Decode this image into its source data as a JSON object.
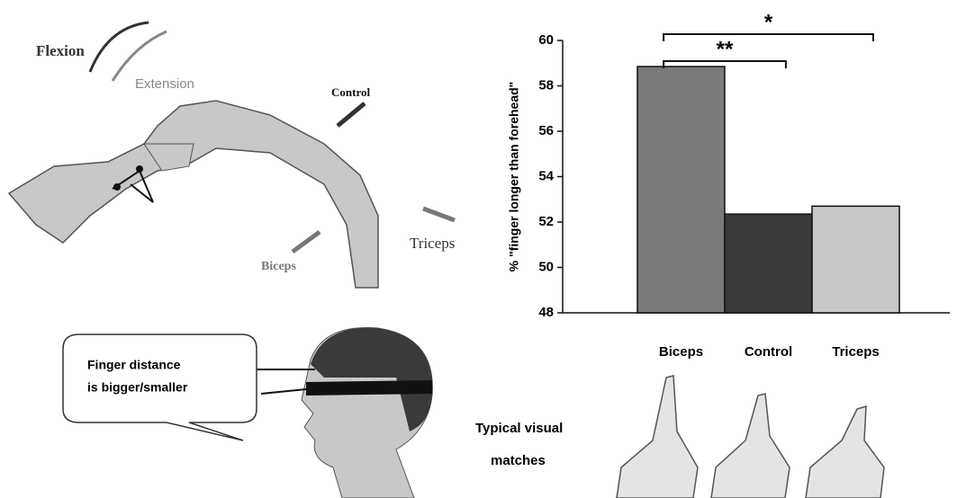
{
  "chart_data": {
    "type": "bar",
    "categories": [
      "Biceps",
      "Control",
      "Triceps"
    ],
    "values": [
      58.85,
      52.35,
      52.7
    ],
    "colors": [
      "#7a7a7a",
      "#3a3a3a",
      "#c8c8c8"
    ],
    "ylabel": "% \"finger longer than forehead\"",
    "ylim": [
      48,
      60
    ],
    "yticks": [
      48,
      50,
      52,
      54,
      56,
      58,
      60
    ],
    "annotations": [
      {
        "text": "**",
        "from": 0,
        "to": 1
      },
      {
        "text": "*",
        "from": 0,
        "to": 2
      }
    ]
  },
  "illustration": {
    "arm_labels": [
      "Flexion",
      "Extension",
      "Control",
      "Triceps",
      "Biceps"
    ],
    "speech_bubble": [
      "Finger distance",
      "is bigger/smaller"
    ],
    "matches_label": [
      "Typical visual",
      "matches"
    ]
  }
}
